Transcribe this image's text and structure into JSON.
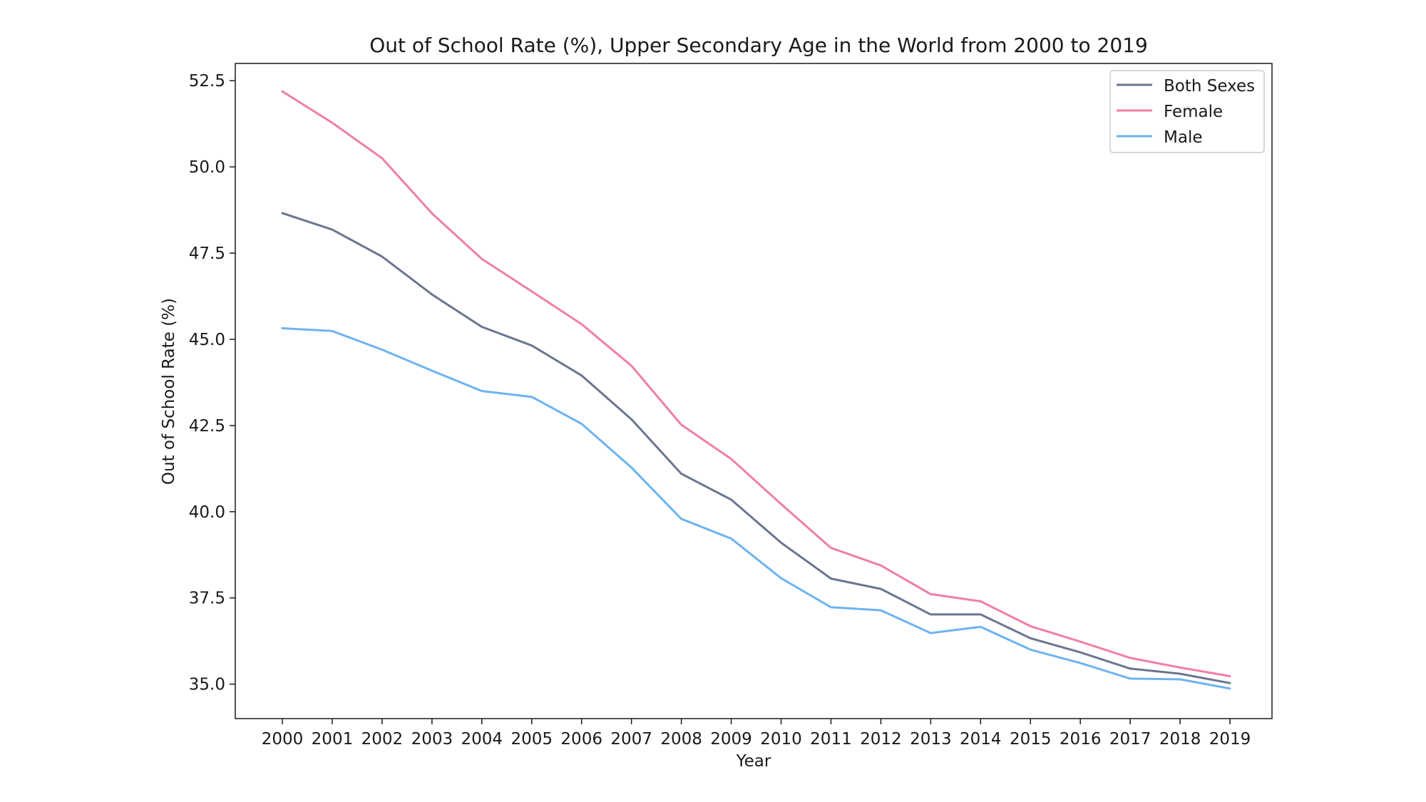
{
  "chart_data": {
    "type": "line",
    "title": "Out of School Rate (%), Upper Secondary Age in the World from 2000 to 2019",
    "xlabel": "Year",
    "ylabel": "Out of School Rate (%)",
    "x": [
      "2000",
      "2001",
      "2002",
      "2003",
      "2004",
      "2005",
      "2006",
      "2007",
      "2008",
      "2009",
      "2010",
      "2011",
      "2012",
      "2013",
      "2014",
      "2015",
      "2016",
      "2017",
      "2018",
      "2019"
    ],
    "ylim": [
      34.0,
      53.0
    ],
    "yticks": [
      "35.0",
      "37.5",
      "40.0",
      "42.5",
      "45.0",
      "47.5",
      "50.0",
      "52.5"
    ],
    "grid": false,
    "legend_position": "top-right",
    "series": [
      {
        "name": "Both Sexes",
        "color": "#6b7590",
        "values": [
          48.66,
          48.18,
          47.4,
          46.3,
          45.36,
          44.82,
          43.95,
          42.68,
          41.1,
          40.35,
          39.1,
          38.06,
          37.76,
          37.02,
          37.02,
          36.33,
          35.92,
          35.45,
          35.3,
          35.03
        ]
      },
      {
        "name": "Female",
        "color": "#f07fa7",
        "values": [
          52.19,
          51.28,
          50.25,
          48.65,
          47.33,
          46.39,
          45.44,
          44.23,
          42.52,
          41.53,
          40.22,
          38.95,
          38.44,
          37.61,
          37.4,
          36.68,
          36.23,
          35.76,
          35.48,
          35.23
        ]
      },
      {
        "name": "Male",
        "color": "#6db3f2",
        "values": [
          45.32,
          45.24,
          44.7,
          44.09,
          43.5,
          43.33,
          42.55,
          41.28,
          39.79,
          39.22,
          38.07,
          37.23,
          37.14,
          36.48,
          36.66,
          36.0,
          35.61,
          35.16,
          35.14,
          34.87
        ]
      }
    ]
  }
}
